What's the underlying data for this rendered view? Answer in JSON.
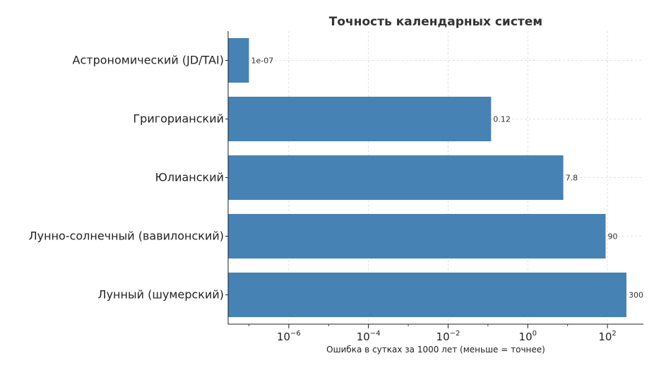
{
  "chart_data": {
    "type": "bar",
    "orientation": "horizontal",
    "title": "Точность календарных систем",
    "xlabel": "Ошибка в сутках за 1000 лет (меньше = точнее)",
    "ylabel": "",
    "x_scale": "log",
    "xlim": [
      3e-08,
      800
    ],
    "grid": true,
    "bar_color": "#4682b4",
    "categories": [
      "Астрономический (JD/TAI)",
      "Григорианский",
      "Юлианский",
      "Лунно-солнечный (вавилонский)",
      "Лунный (шумерский)"
    ],
    "values": [
      1e-07,
      0.12,
      7.8,
      90,
      300
    ],
    "data_labels": [
      "1e-07",
      "0.12",
      "7.8",
      "90",
      "300"
    ],
    "x_ticks": [
      {
        "base": "10",
        "exp": "−6",
        "value": 1e-06
      },
      {
        "base": "10",
        "exp": "−4",
        "value": 0.0001
      },
      {
        "base": "10",
        "exp": "−2",
        "value": 0.01
      },
      {
        "base": "10",
        "exp": "0",
        "value": 1
      },
      {
        "base": "10",
        "exp": "2",
        "value": 100
      }
    ]
  }
}
